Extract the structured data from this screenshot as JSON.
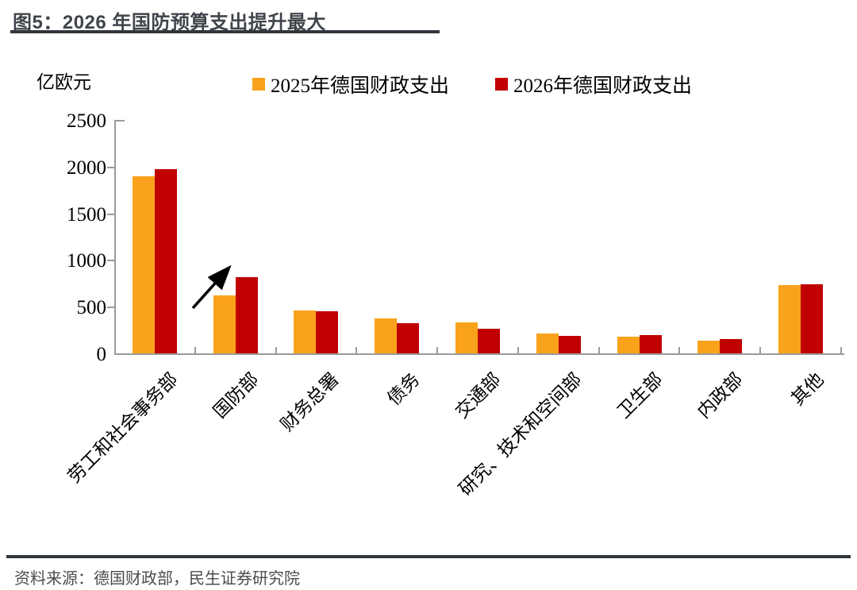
{
  "page": {
    "title": "图5：2026 年国防预算支出提升最大",
    "source": "资料来源：德国财政部，民生证券研究院"
  },
  "chart_data": {
    "type": "bar",
    "title": "2026 年国防预算支出提升最大",
    "unit_label": "亿欧元",
    "categories": [
      "劳工和社会事务部",
      "国防部",
      "财务总署",
      "债务",
      "交通部",
      "研究、技术和空间部",
      "卫生部",
      "内政部",
      "其他"
    ],
    "series": [
      {
        "name": "2025年德国财政支出",
        "color": "#FAA21B",
        "values": [
          1900,
          620,
          460,
          370,
          330,
          210,
          180,
          135,
          730
        ]
      },
      {
        "name": "2026年德国财政支出",
        "color": "#C00000",
        "values": [
          1975,
          820,
          450,
          320,
          265,
          190,
          195,
          150,
          740
        ]
      }
    ],
    "ylim": [
      0,
      2500
    ],
    "yticks": [
      0,
      500,
      1000,
      1500,
      2000,
      2500
    ],
    "grid": false,
    "legend_position": "top",
    "annotations": [
      {
        "type": "arrow",
        "target": "国防部 2026年 bar",
        "direction": "up-right"
      }
    ]
  },
  "colors": {
    "bar_2025": "#FAA21B",
    "bar_2026": "#C00000",
    "axis": "#9B9B9B",
    "title_text": "#40444B",
    "rule": "#31353C",
    "source_text": "#4C4C4C"
  }
}
